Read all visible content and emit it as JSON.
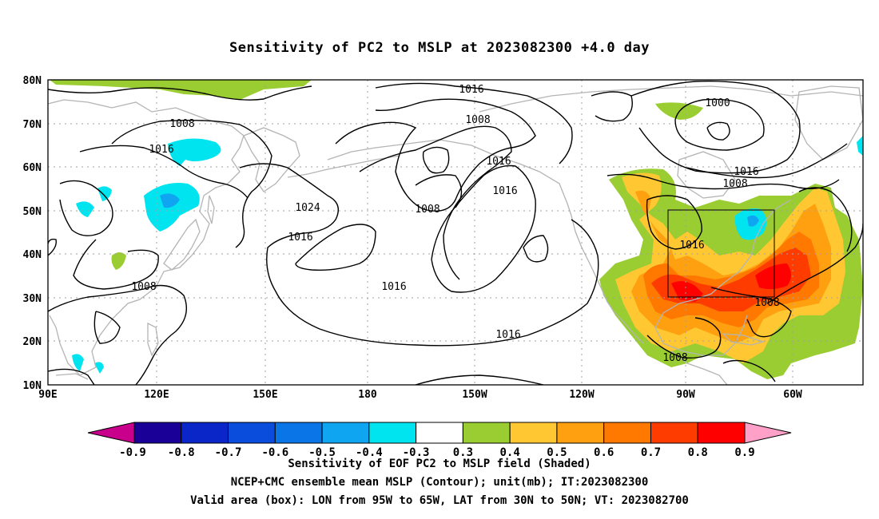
{
  "title": "Sensitivity of PC2 to MSLP at 2023082300 +4.0 day",
  "axes": {
    "lat_labels": [
      "80N",
      "70N",
      "60N",
      "50N",
      "40N",
      "30N",
      "20N",
      "10N"
    ],
    "lon_labels": [
      "90E",
      "120E",
      "150E",
      "180",
      "150W",
      "120W",
      "90W",
      "60W"
    ]
  },
  "contour_labels": [
    "1016",
    "1008",
    "1016",
    "1000",
    "1008",
    "1016",
    "1016",
    "1008",
    "1016",
    "1024",
    "1008",
    "1016",
    "1016",
    "1008",
    "1016",
    "1008",
    "1016",
    "1008"
  ],
  "colorbar": {
    "labels": [
      "-0.9",
      "-0.8",
      "-0.7",
      "-0.6",
      "-0.5",
      "-0.4",
      "-0.3",
      "0.3",
      "0.4",
      "0.5",
      "0.6",
      "0.7",
      "0.8",
      "0.9"
    ],
    "colors": [
      "#1a0096",
      "#0a26c8",
      "#0a4ddc",
      "#0a75e6",
      "#10a5f0",
      "#00e4f0",
      "#ffffff",
      "#9acd32",
      "#ffc832",
      "#ffa010",
      "#ff7800",
      "#ff3c00",
      "#ff0000"
    ],
    "low_arrow_color": "#c8008c",
    "high_arrow_color": "#ffa0c8"
  },
  "captions": {
    "line1": "Sensitivity of EOF PC2 to MSLP field (Shaded)",
    "line2": "NCEP+CMC ensemble mean MSLP (Contour); unit(mb); IT:2023082300",
    "line3": "Valid area (box): LON from 95W to 65W, LAT from 30N to 50N; VT: 2023082700"
  },
  "colors": {
    "land_outline": "#b4b4b4",
    "grid": "#a0a0a0",
    "contour": "#000000"
  }
}
